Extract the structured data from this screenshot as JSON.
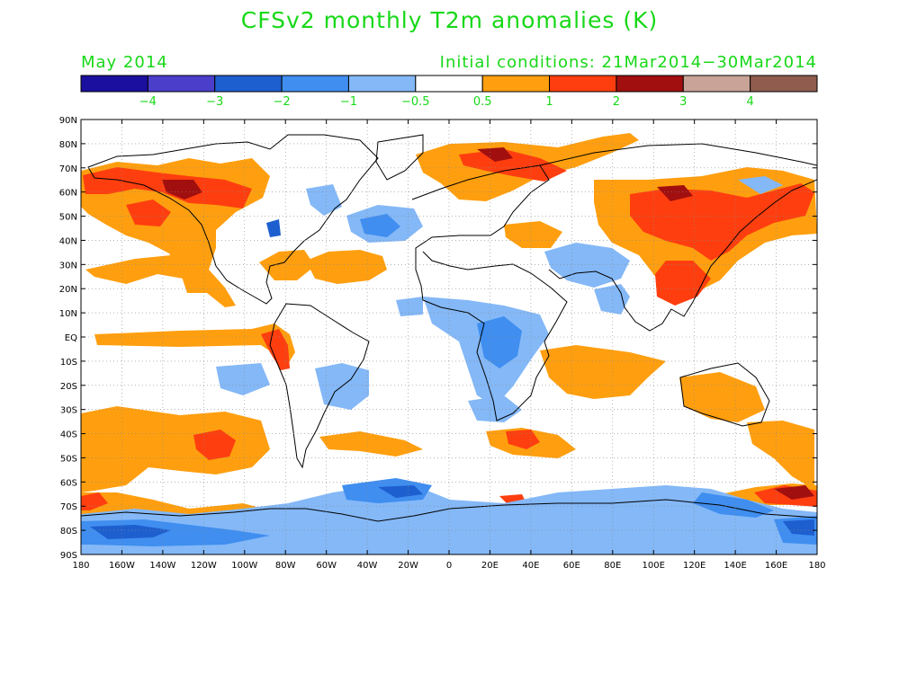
{
  "header": {
    "title": "CFSv2 monthly T2m anomalies (K)",
    "month": "May 2014",
    "initial_conditions": "Initial conditions: 21Mar2014−30Mar2014"
  },
  "colorbar": {
    "colors": [
      "#1a0f9e",
      "#4a3ecb",
      "#1e5fcf",
      "#3f8ef0",
      "#84b8f7",
      "#ffffff",
      "#ff9f0f",
      "#ff3e0f",
      "#a10f0f",
      "#c9a397",
      "#8f5c4e"
    ],
    "labels": [
      "−4",
      "−3",
      "−2",
      "−1",
      "−0.5",
      "0.5",
      "1",
      "2",
      "3",
      "4"
    ]
  },
  "map": {
    "lat_labels": [
      "90N",
      "80N",
      "70N",
      "60N",
      "50N",
      "40N",
      "30N",
      "20N",
      "10N",
      "EQ",
      "10S",
      "20S",
      "30S",
      "40S",
      "50S",
      "60S",
      "70S",
      "80S",
      "90S"
    ],
    "lon_labels": [
      "180",
      "160W",
      "140W",
      "120W",
      "100W",
      "80W",
      "60W",
      "40W",
      "20W",
      "0",
      "20E",
      "40E",
      "60E",
      "80E",
      "100E",
      "120E",
      "140E",
      "160E",
      "180"
    ],
    "text_color": "#17d817"
  }
}
